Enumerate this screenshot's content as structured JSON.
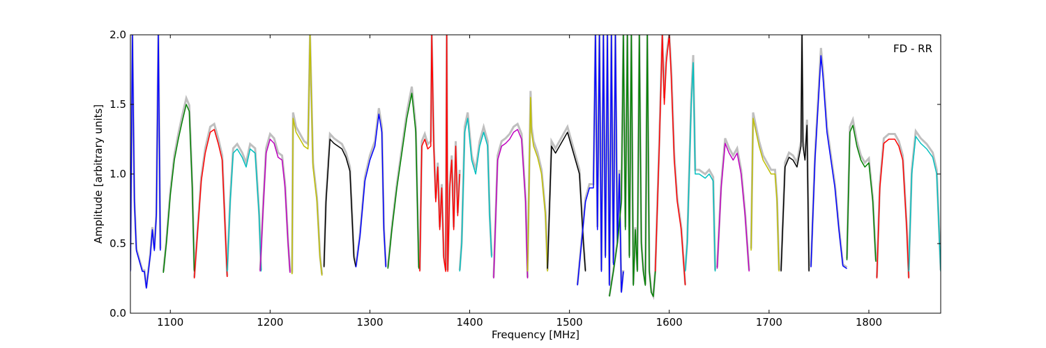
{
  "chart_data": {
    "type": "line",
    "title": "",
    "annotation": "FD - RR",
    "xlabel": "Frequency [MHz]",
    "ylabel": "Amplitude [arbitrary units]",
    "xlim": [
      1060,
      1872
    ],
    "ylim": [
      0,
      2.0
    ],
    "xticks": [
      1100,
      1200,
      1300,
      1400,
      1500,
      1600,
      1700,
      1800
    ],
    "yticks": [
      0.0,
      0.5,
      1.0,
      1.5,
      2.0
    ],
    "ytick_labels": [
      "0.0",
      "0.5",
      "1.0",
      "1.5",
      "2.0"
    ],
    "grid": false,
    "legend": "none",
    "reference_color": "#bfbfbf",
    "bands": [
      {
        "color": "#0000ff",
        "x": [
          1060,
          1062,
          1064,
          1066,
          1068,
          1070,
          1072,
          1074,
          1076,
          1078,
          1080,
          1082,
          1084,
          1086,
          1088,
          1090
        ],
        "y": [
          0.3,
          2.0,
          0.8,
          0.45,
          0.4,
          0.35,
          0.3,
          0.3,
          0.18,
          0.3,
          0.42,
          0.6,
          0.45,
          0.7,
          2.0,
          0.45
        ]
      },
      {
        "color": "#008000",
        "x": [
          1093,
          1096,
          1100,
          1104,
          1108,
          1112,
          1116,
          1119,
          1122,
          1124
        ],
        "y": [
          0.29,
          0.5,
          0.85,
          1.1,
          1.25,
          1.38,
          1.5,
          1.45,
          0.9,
          0.3
        ]
      },
      {
        "color": "#ff0000",
        "x": [
          1124,
          1127,
          1131,
          1135,
          1140,
          1144,
          1148,
          1152,
          1155,
          1157
        ],
        "y": [
          0.25,
          0.55,
          0.95,
          1.15,
          1.3,
          1.32,
          1.22,
          1.1,
          0.6,
          0.26
        ]
      },
      {
        "color": "#00bfbf",
        "x": [
          1157,
          1160,
          1163,
          1167,
          1172,
          1176,
          1180,
          1185,
          1189,
          1191
        ],
        "y": [
          0.3,
          0.8,
          1.15,
          1.18,
          1.12,
          1.05,
          1.18,
          1.15,
          0.7,
          0.3
        ]
      },
      {
        "color": "#bf00bf",
        "x": [
          1190,
          1193,
          1196,
          1200,
          1204,
          1208,
          1212,
          1215,
          1218,
          1220
        ],
        "y": [
          0.3,
          0.75,
          1.15,
          1.25,
          1.22,
          1.12,
          1.1,
          0.9,
          0.5,
          0.29
        ]
      },
      {
        "color": "#bfbf00",
        "x": [
          1222,
          1223,
          1226,
          1230,
          1234,
          1238,
          1240,
          1243,
          1247,
          1250,
          1252
        ],
        "y": [
          0.28,
          1.4,
          1.3,
          1.25,
          1.2,
          1.18,
          2.0,
          1.05,
          0.8,
          0.4,
          0.27
        ]
      },
      {
        "color": "#000000",
        "x": [
          1254,
          1256,
          1260,
          1264,
          1268,
          1272,
          1276,
          1280,
          1284,
          1286
        ],
        "y": [
          0.33,
          0.8,
          1.25,
          1.22,
          1.2,
          1.18,
          1.12,
          1.02,
          0.4,
          0.33
        ]
      },
      {
        "color": "#0000ff",
        "x": [
          1286,
          1290,
          1295,
          1300,
          1305,
          1309,
          1312,
          1314,
          1316
        ],
        "y": [
          0.33,
          0.55,
          0.95,
          1.1,
          1.2,
          1.43,
          1.3,
          0.6,
          0.33
        ]
      },
      {
        "color": "#008000",
        "x": [
          1318,
          1322,
          1327,
          1332,
          1337,
          1342,
          1346,
          1349
        ],
        "y": [
          0.32,
          0.6,
          0.9,
          1.15,
          1.4,
          1.58,
          1.3,
          0.32
        ]
      },
      {
        "color": "#ff0000",
        "x": [
          1350,
          1352,
          1355,
          1358,
          1361,
          1362,
          1364,
          1366,
          1368,
          1370,
          1372,
          1374,
          1376,
          1377,
          1378,
          1380,
          1382,
          1384,
          1386,
          1388,
          1390
        ],
        "y": [
          0.3,
          1.2,
          1.25,
          1.18,
          1.2,
          2.0,
          1.2,
          0.8,
          1.05,
          0.6,
          0.9,
          0.4,
          0.3,
          2.0,
          0.3,
          0.9,
          1.1,
          0.6,
          1.2,
          0.7,
          1.0
        ]
      },
      {
        "color": "#00bfbf",
        "x": [
          1390,
          1392,
          1395,
          1398,
          1402,
          1406,
          1410,
          1414,
          1418,
          1420,
          1422
        ],
        "y": [
          0.3,
          0.5,
          1.3,
          1.4,
          1.1,
          1.0,
          1.2,
          1.3,
          1.2,
          0.7,
          0.4
        ]
      },
      {
        "color": "#bf00bf",
        "x": [
          1424,
          1428,
          1432,
          1436,
          1440,
          1444,
          1448,
          1452,
          1456,
          1458
        ],
        "y": [
          0.25,
          1.1,
          1.2,
          1.22,
          1.25,
          1.3,
          1.32,
          1.25,
          0.8,
          0.25
        ]
      },
      {
        "color": "#bfbf00",
        "x": [
          1458,
          1461,
          1462,
          1464,
          1468,
          1472,
          1476,
          1478
        ],
        "y": [
          0.3,
          1.55,
          1.3,
          1.2,
          1.12,
          1.0,
          0.7,
          0.3
        ]
      },
      {
        "color": "#000000",
        "x": [
          1478,
          1482,
          1486,
          1490,
          1494,
          1498,
          1502,
          1506,
          1510,
          1514,
          1516
        ],
        "y": [
          0.32,
          1.2,
          1.15,
          1.2,
          1.25,
          1.3,
          1.2,
          1.1,
          1.0,
          0.5,
          0.3
        ]
      },
      {
        "color": "#0000ff",
        "x": [
          1508,
          1512,
          1516,
          1520,
          1524,
          1526,
          1528,
          1530,
          1532,
          1534,
          1536,
          1538,
          1540,
          1542,
          1544,
          1546,
          1548,
          1550,
          1552,
          1554
        ],
        "y": [
          0.2,
          0.5,
          0.8,
          0.9,
          0.9,
          2.0,
          0.6,
          2.0,
          0.3,
          2.0,
          0.4,
          2.0,
          0.2,
          2.0,
          0.35,
          2.0,
          0.5,
          1.0,
          0.15,
          0.3
        ]
      },
      {
        "color": "#008000",
        "x": [
          1540,
          1544,
          1548,
          1552,
          1554,
          1556,
          1558,
          1560,
          1562,
          1564,
          1566,
          1568,
          1570,
          1572,
          1574,
          1576,
          1578,
          1580,
          1582,
          1584,
          1586
        ],
        "y": [
          0.12,
          0.3,
          0.5,
          0.8,
          2.0,
          0.6,
          2.0,
          0.4,
          2.0,
          0.2,
          0.6,
          0.3,
          2.0,
          0.5,
          0.3,
          0.2,
          2.0,
          0.3,
          0.15,
          0.12,
          0.3
        ]
      },
      {
        "color": "#ff0000",
        "x": [
          1586,
          1590,
          1593,
          1595,
          1597,
          1600,
          1602,
          1605,
          1608,
          1612,
          1616
        ],
        "y": [
          0.3,
          1.2,
          2.0,
          1.5,
          1.8,
          2.0,
          1.7,
          1.1,
          0.8,
          0.6,
          0.2
        ]
      },
      {
        "color": "#00bfbf",
        "x": [
          1616,
          1618,
          1620,
          1622,
          1624,
          1626,
          1630,
          1636,
          1640,
          1644,
          1646
        ],
        "y": [
          0.3,
          0.5,
          1.0,
          1.5,
          1.8,
          1.0,
          1.0,
          0.97,
          1.0,
          0.95,
          0.3
        ]
      },
      {
        "color": "#bf00bf",
        "x": [
          1648,
          1652,
          1656,
          1660,
          1664,
          1668,
          1672,
          1676,
          1680
        ],
        "y": [
          0.32,
          0.9,
          1.22,
          1.15,
          1.1,
          1.15,
          1.0,
          0.7,
          0.3
        ]
      },
      {
        "color": "#bfbf00",
        "x": [
          1682,
          1684,
          1687,
          1690,
          1694,
          1698,
          1702,
          1706,
          1708,
          1710
        ],
        "y": [
          0.45,
          1.4,
          1.3,
          1.2,
          1.1,
          1.05,
          1.0,
          1.0,
          0.8,
          0.3
        ]
      },
      {
        "color": "#000000",
        "x": [
          1712,
          1716,
          1720,
          1724,
          1728,
          1732,
          1733,
          1734,
          1736,
          1738,
          1740
        ],
        "y": [
          0.3,
          1.05,
          1.12,
          1.1,
          1.05,
          1.2,
          2.0,
          1.2,
          1.1,
          1.35,
          0.3
        ]
      },
      {
        "color": "#0000ff",
        "x": [
          1742,
          1746,
          1750,
          1752,
          1754,
          1758,
          1762,
          1766,
          1770,
          1774,
          1778
        ],
        "y": [
          0.33,
          1.1,
          1.6,
          1.85,
          1.7,
          1.3,
          1.1,
          0.9,
          0.6,
          0.34,
          0.32
        ]
      },
      {
        "color": "#008000",
        "x": [
          1778,
          1781,
          1784,
          1788,
          1792,
          1796,
          1800,
          1804,
          1807
        ],
        "y": [
          0.38,
          1.3,
          1.35,
          1.2,
          1.1,
          1.05,
          1.08,
          0.8,
          0.37
        ]
      },
      {
        "color": "#ff0000",
        "x": [
          1808,
          1811,
          1815,
          1820,
          1826,
          1830,
          1834,
          1838,
          1840
        ],
        "y": [
          0.25,
          0.9,
          1.22,
          1.25,
          1.25,
          1.2,
          1.1,
          0.6,
          0.25
        ]
      },
      {
        "color": "#00bfbf",
        "x": [
          1840,
          1843,
          1847,
          1852,
          1858,
          1864,
          1868,
          1872
        ],
        "y": [
          0.3,
          1.0,
          1.27,
          1.22,
          1.18,
          1.12,
          1.0,
          0.3
        ]
      }
    ]
  }
}
